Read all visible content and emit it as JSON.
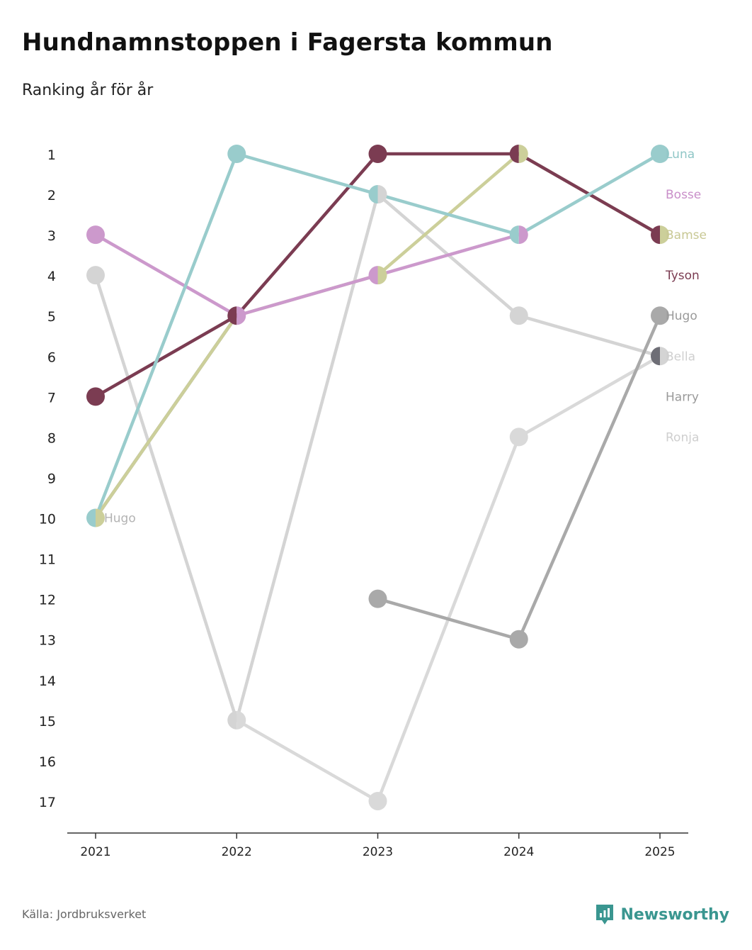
{
  "header": {
    "title": "Hundnamnstoppen i Fagersta kommun",
    "subtitle": "Ranking år för år"
  },
  "footer": {
    "source": "Källa: Jordbruksverket",
    "brand": "Newsworthy",
    "brand_color": "#3a9690"
  },
  "chart_data": {
    "type": "line",
    "title": "Hundnamnstoppen i Fagersta kommun",
    "subtitle": "Ranking år för år",
    "xlabel": "",
    "ylabel": "",
    "ylim": [
      1,
      17
    ],
    "y_inverted": true,
    "categories": [
      "2021",
      "2022",
      "2023",
      "2024",
      "2025"
    ],
    "y_ticks": [
      "1",
      "2",
      "3",
      "4",
      "5",
      "6",
      "7",
      "8",
      "9",
      "10",
      "11",
      "12",
      "13",
      "14",
      "15",
      "16",
      "17"
    ],
    "series": [
      {
        "name": "Ronja",
        "color": "#d9d9d9",
        "label_color": "#cfcfcf",
        "label": "Ronja",
        "values": [
          null,
          15,
          17,
          8,
          6
        ]
      },
      {
        "name": "Bella",
        "color": "#d4d4d4",
        "label_color": "#cfcfcf",
        "label": "Bella",
        "values": [
          4,
          15,
          2,
          5,
          6
        ]
      },
      {
        "name": "Harry",
        "color": "#a9a9a9",
        "label_color": "#9a9a9a",
        "label": "Harry",
        "values": [
          null,
          null,
          12,
          13,
          5
        ]
      },
      {
        "name": "Hugo",
        "color": "#6e6e76",
        "label_color": "#9a9a9a",
        "label": "Hugo",
        "values": [
          10,
          5,
          null,
          null,
          6
        ]
      },
      {
        "name": "Bamse",
        "color": "#cccf9a",
        "label_color": "#c8c894",
        "label": "Bamse",
        "values": [
          10,
          5,
          4,
          1,
          3
        ]
      },
      {
        "name": "Bosse",
        "color": "#cc99cc",
        "label_color": "#c98fc9",
        "label": "Bosse",
        "values": [
          3,
          5,
          4,
          3,
          null
        ]
      },
      {
        "name": "Tyson",
        "color": "#7b3c52",
        "label_color": "#7b3c52",
        "label": "Tyson",
        "values": [
          7,
          5,
          1,
          1,
          3
        ]
      },
      {
        "name": "Luna",
        "color": "#99cccc",
        "label_color": "#8fc6c6",
        "label": "Luna",
        "values": [
          10,
          1,
          2,
          3,
          1
        ]
      }
    ],
    "point_label": {
      "text": "Hugo",
      "x": "2021",
      "y": 10,
      "color": "#b3b3b3"
    }
  }
}
